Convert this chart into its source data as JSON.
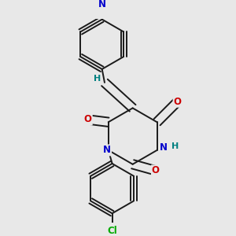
{
  "bg_color": "#e8e8e8",
  "bond_color": "#1a1a1a",
  "bond_width": 1.4,
  "atom_colors": {
    "N": "#0000cc",
    "O": "#cc0000",
    "Cl": "#00aa00",
    "H": "#008080",
    "C": "#1a1a1a"
  },
  "font_size_atom": 8.5,
  "font_size_H": 8.0,
  "font_size_Cl": 8.5
}
